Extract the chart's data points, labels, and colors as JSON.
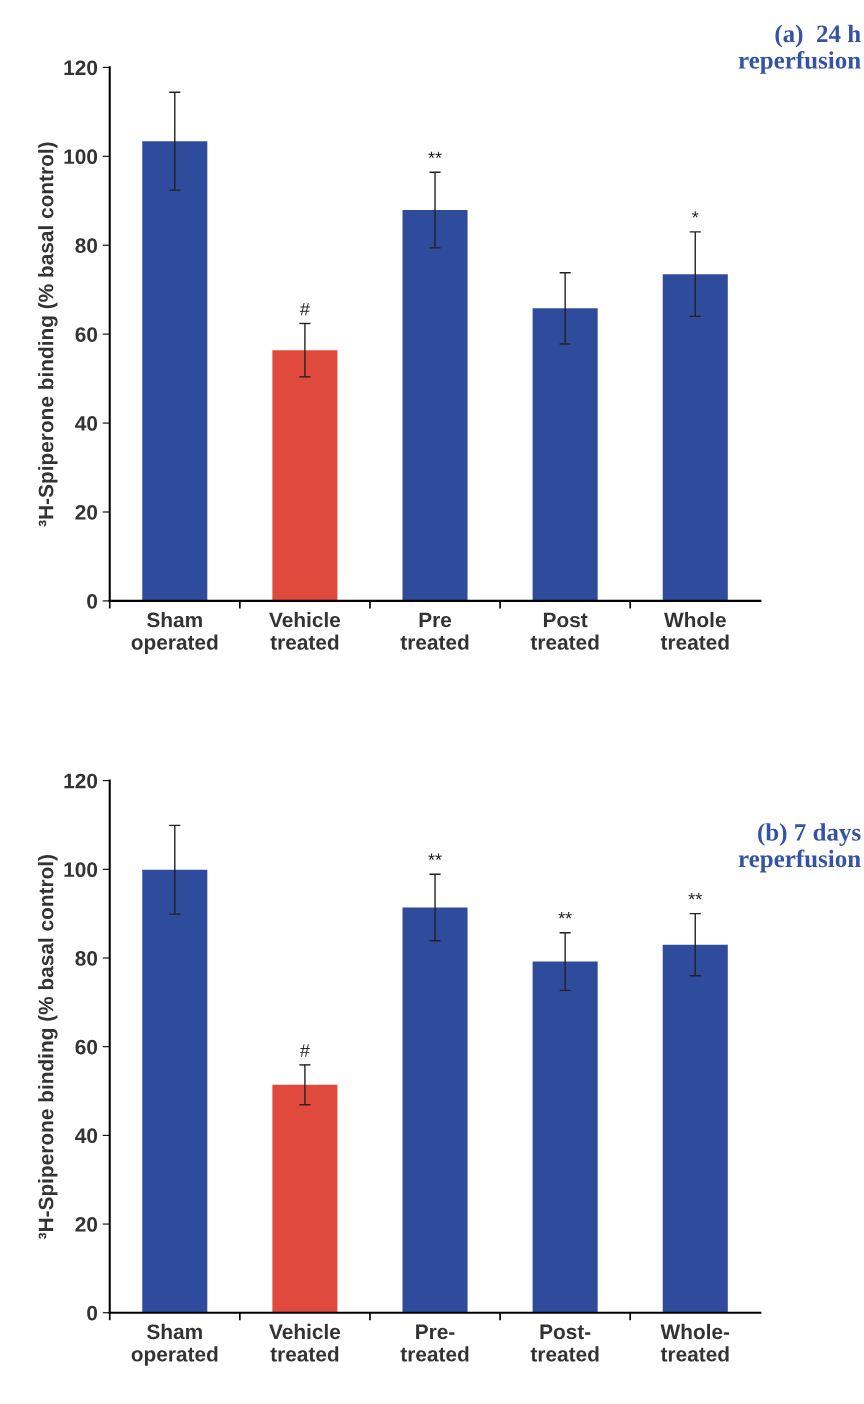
{
  "chart_data": [
    {
      "type": "bar",
      "title": "(a)  24 h\nreperfusion",
      "ylabel": "³H-Spiperone binding (% basal control)",
      "categories": [
        "Sham\noperated",
        "Vehicle\ntreated",
        "Pre\ntreated",
        "Post\ntreated",
        "Whole\ntreated"
      ],
      "values": [
        103.4,
        56.4,
        87.9,
        65.8,
        73.5
      ],
      "errors": [
        11,
        6,
        8.5,
        8,
        9.5
      ],
      "colors": [
        "#2f4c9c",
        "#e04a3c",
        "#2f4c9c",
        "#2f4c9c",
        "#2f4c9c"
      ],
      "ylim": [
        0,
        120
      ],
      "yticks": [
        0,
        20,
        40,
        60,
        80,
        100,
        120
      ],
      "grid": false,
      "legend": false,
      "annotations": [
        {
          "text": "#",
          "x": "Vehicle\ntreated",
          "y": 62.4
        },
        {
          "text": "**",
          "x": "Pre\ntreated",
          "y": 96.4
        },
        {
          "text": "*",
          "x": "Whole\ntreated",
          "y": 83
        }
      ]
    },
    {
      "type": "bar",
      "title": "(b) 7 days\nreperfusion",
      "ylabel": "³H-Spiperone binding (% basal control)",
      "categories": [
        "Sham\noperated",
        "Vehicle\ntreated",
        "Pre-\ntreated",
        "Post-\ntreated",
        "Whole-\ntreated"
      ],
      "values": [
        99.9,
        51.4,
        91.4,
        79.2,
        83
      ],
      "errors": [
        10,
        4.5,
        7.5,
        6.5,
        7
      ],
      "colors": [
        "#2f4c9c",
        "#e04a3c",
        "#2f4c9c",
        "#2f4c9c",
        "#2f4c9c"
      ],
      "ylim": [
        0,
        120
      ],
      "yticks": [
        0,
        20,
        40,
        60,
        80,
        100,
        120
      ],
      "grid": false,
      "legend": false,
      "annotations": [
        {
          "text": "#",
          "x": "Vehicle\ntreated",
          "y": 55.9
        },
        {
          "text": "**",
          "x": "Pre-\ntreated",
          "y": 98.9
        },
        {
          "text": "**",
          "x": "Post-\ntreated",
          "y": 85.7
        },
        {
          "text": "**",
          "x": "Whole-\ntreated",
          "y": 90
        }
      ]
    }
  ]
}
